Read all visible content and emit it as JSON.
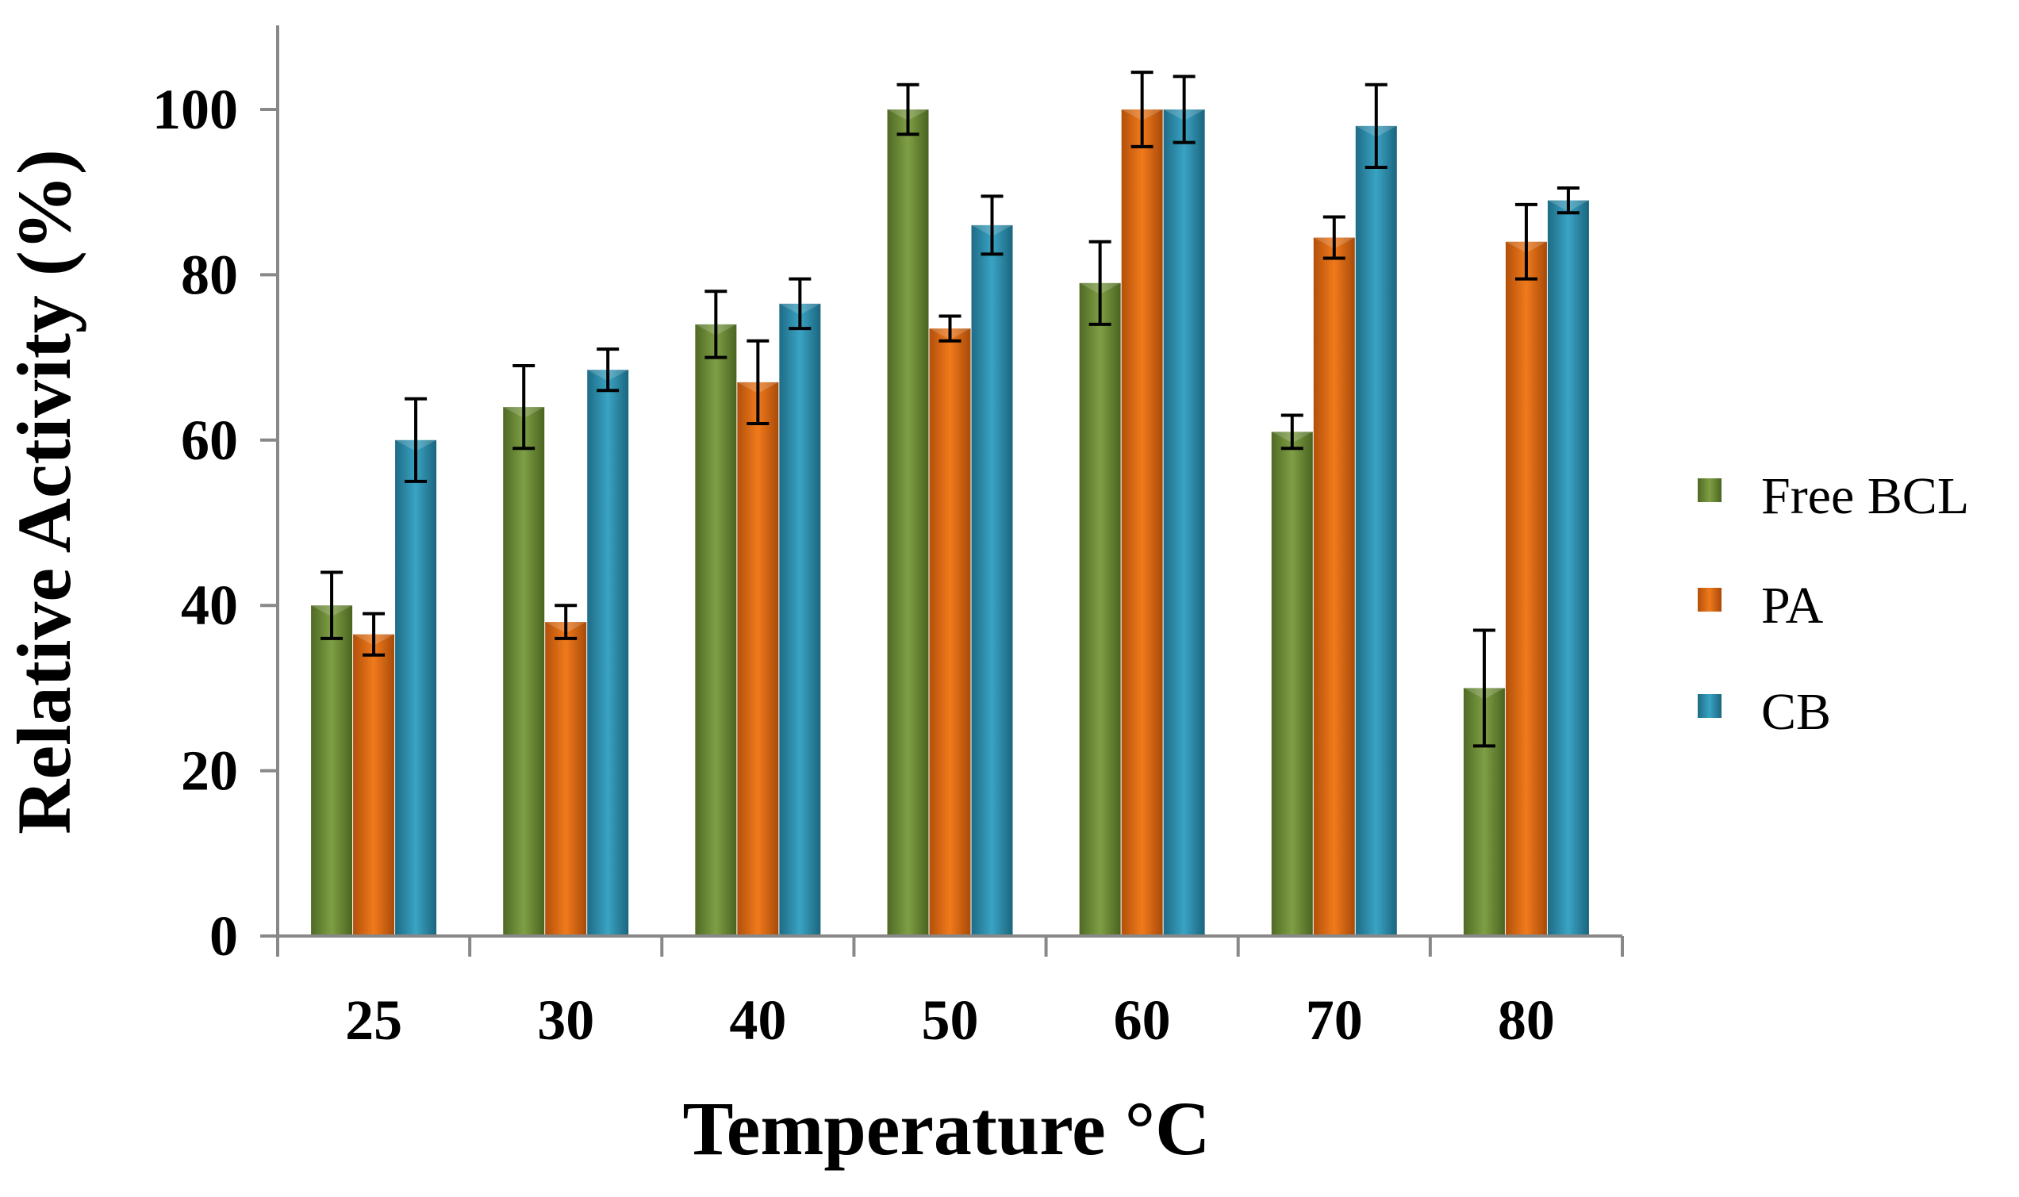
{
  "chart_data": {
    "type": "bar",
    "title": "",
    "xlabel": "Temperature °C",
    "ylabel": "Relative Activity (%)",
    "categories": [
      "25",
      "30",
      "40",
      "50",
      "60",
      "70",
      "80"
    ],
    "ylim": [
      0,
      110
    ],
    "yticks": [
      0,
      20,
      40,
      60,
      80,
      100
    ],
    "ytick_labels": [
      "0",
      "20",
      "40",
      "60",
      "80",
      "100"
    ],
    "grid": false,
    "legend_position": "right",
    "error_bars": true,
    "series": [
      {
        "name": "Free BCL",
        "color": "#6a8a35",
        "values": [
          40,
          64,
          74,
          100,
          79,
          61,
          30
        ],
        "errors": [
          4,
          5,
          4,
          3,
          5,
          2,
          7
        ]
      },
      {
        "name": "PA",
        "color": "#e06a10",
        "values": [
          36.5,
          38,
          67,
          73.5,
          100,
          84.5,
          84
        ],
        "errors": [
          2.5,
          2,
          5,
          1.5,
          4.5,
          2.5,
          4.5
        ]
      },
      {
        "name": "CB",
        "color": "#2a8fae",
        "values": [
          60,
          68.5,
          76.5,
          86,
          100,
          98,
          89
        ],
        "errors": [
          5,
          2.5,
          3,
          3.5,
          4,
          5,
          1.5
        ]
      }
    ]
  }
}
